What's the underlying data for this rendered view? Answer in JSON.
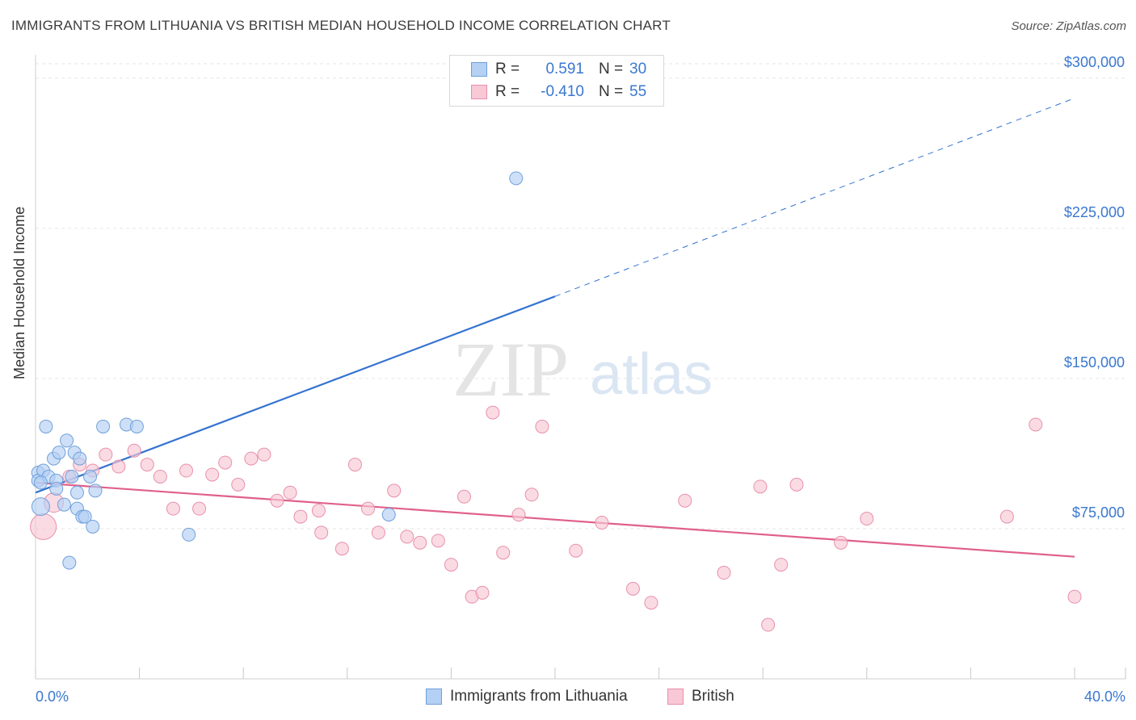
{
  "title": "IMMIGRANTS FROM LITHUANIA VS BRITISH MEDIAN HOUSEHOLD INCOME CORRELATION CHART",
  "source": "Source: ZipAtlas.com",
  "watermark": {
    "zip": "ZIP",
    "atlas": "atlas"
  },
  "legend": {
    "rows": [
      {
        "r_label": "R =",
        "r_value": "0.591",
        "n_label": "N =",
        "n_value": "30",
        "color": "#a8c8f0",
        "border": "#6fa0dc"
      },
      {
        "r_label": "R =",
        "r_value": "-0.410",
        "n_label": "N =",
        "n_value": "55",
        "color": "#f8c0d0",
        "border": "#e890aa"
      }
    ]
  },
  "bottom_legend": [
    {
      "label": "Immigrants from Lithuania",
      "color": "#a8c8f0",
      "border": "#6fa0dc"
    },
    {
      "label": "British",
      "color": "#f8c0d0",
      "border": "#e890aa"
    }
  ],
  "chart_data": {
    "type": "scatter",
    "title": "IMMIGRANTS FROM LITHUANIA VS BRITISH MEDIAN HOUSEHOLD INCOME CORRELATION CHART",
    "xlabel": "",
    "ylabel": "Median Household Income",
    "xlim": [
      0,
      40
    ],
    "ylim": [
      0,
      310000
    ],
    "x_tick_labels": [
      "0.0%",
      "40.0%"
    ],
    "y_ticks": [
      75000,
      150000,
      225000,
      300000
    ],
    "y_tick_labels": [
      "$75,000",
      "$150,000",
      "$225,000",
      "$300,000"
    ],
    "grid": true,
    "series": [
      {
        "name": "Immigrants from Lithuania",
        "color": "#6fa0dc",
        "fill": "#b4d0f2",
        "line_color": "#3473d0",
        "points": [
          [
            0.1,
            103000
          ],
          [
            0.1,
            99000
          ],
          [
            0.2,
            86000
          ],
          [
            0.3,
            104000
          ],
          [
            0.4,
            126000
          ],
          [
            0.5,
            101000
          ],
          [
            0.7,
            110000
          ],
          [
            0.8,
            99000
          ],
          [
            0.8,
            95000
          ],
          [
            0.9,
            113000
          ],
          [
            1.1,
            87000
          ],
          [
            1.2,
            119000
          ],
          [
            1.3,
            58000
          ],
          [
            1.4,
            101000
          ],
          [
            1.5,
            113000
          ],
          [
            1.6,
            85000
          ],
          [
            1.6,
            93000
          ],
          [
            1.7,
            110000
          ],
          [
            1.8,
            81000
          ],
          [
            1.9,
            81000
          ],
          [
            2.1,
            101000
          ],
          [
            2.2,
            76000
          ],
          [
            2.3,
            94000
          ],
          [
            2.6,
            126000
          ],
          [
            3.5,
            127000
          ],
          [
            3.9,
            126000
          ],
          [
            5.9,
            72000
          ],
          [
            13.6,
            82000
          ],
          [
            18.5,
            250000
          ],
          [
            0.2,
            98000
          ]
        ],
        "trend": {
          "x": [
            0,
            20
          ],
          "y": [
            93000,
            191000
          ],
          "extended_x": [
            20,
            40
          ],
          "extended_y": [
            191000,
            290000
          ]
        }
      },
      {
        "name": "British",
        "color": "#e890aa",
        "fill": "#f8c8d6",
        "line_color": "#e0608a",
        "points": [
          [
            0.3,
            76000
          ],
          [
            0.7,
            88000
          ],
          [
            1.3,
            101000
          ],
          [
            1.7,
            107000
          ],
          [
            2.2,
            104000
          ],
          [
            2.7,
            112000
          ],
          [
            3.2,
            106000
          ],
          [
            3.8,
            114000
          ],
          [
            4.3,
            107000
          ],
          [
            4.8,
            101000
          ],
          [
            5.3,
            85000
          ],
          [
            5.8,
            104000
          ],
          [
            6.3,
            85000
          ],
          [
            6.8,
            102000
          ],
          [
            7.3,
            108000
          ],
          [
            7.8,
            97000
          ],
          [
            8.3,
            110000
          ],
          [
            8.8,
            112000
          ],
          [
            9.3,
            89000
          ],
          [
            9.8,
            93000
          ],
          [
            10.2,
            81000
          ],
          [
            10.9,
            84000
          ],
          [
            11.0,
            73000
          ],
          [
            11.8,
            65000
          ],
          [
            12.3,
            107000
          ],
          [
            12.8,
            85000
          ],
          [
            13.2,
            73000
          ],
          [
            13.8,
            94000
          ],
          [
            14.3,
            71000
          ],
          [
            14.8,
            68000
          ],
          [
            15.5,
            69000
          ],
          [
            16.0,
            57000
          ],
          [
            16.5,
            91000
          ],
          [
            16.8,
            41000
          ],
          [
            17.2,
            43000
          ],
          [
            17.6,
            133000
          ],
          [
            18.0,
            63000
          ],
          [
            18.6,
            82000
          ],
          [
            19.1,
            92000
          ],
          [
            19.5,
            126000
          ],
          [
            20.8,
            64000
          ],
          [
            21.8,
            78000
          ],
          [
            23.0,
            45000
          ],
          [
            23.7,
            38000
          ],
          [
            25.0,
            89000
          ],
          [
            26.5,
            53000
          ],
          [
            27.9,
            96000
          ],
          [
            28.2,
            27000
          ],
          [
            28.7,
            57000
          ],
          [
            29.3,
            97000
          ],
          [
            31.0,
            68000
          ],
          [
            32.0,
            80000
          ],
          [
            37.4,
            81000
          ],
          [
            38.5,
            127000
          ],
          [
            40.0,
            41000
          ]
        ],
        "trend": {
          "x": [
            0,
            40
          ],
          "y": [
            98000,
            61000
          ]
        }
      }
    ]
  }
}
